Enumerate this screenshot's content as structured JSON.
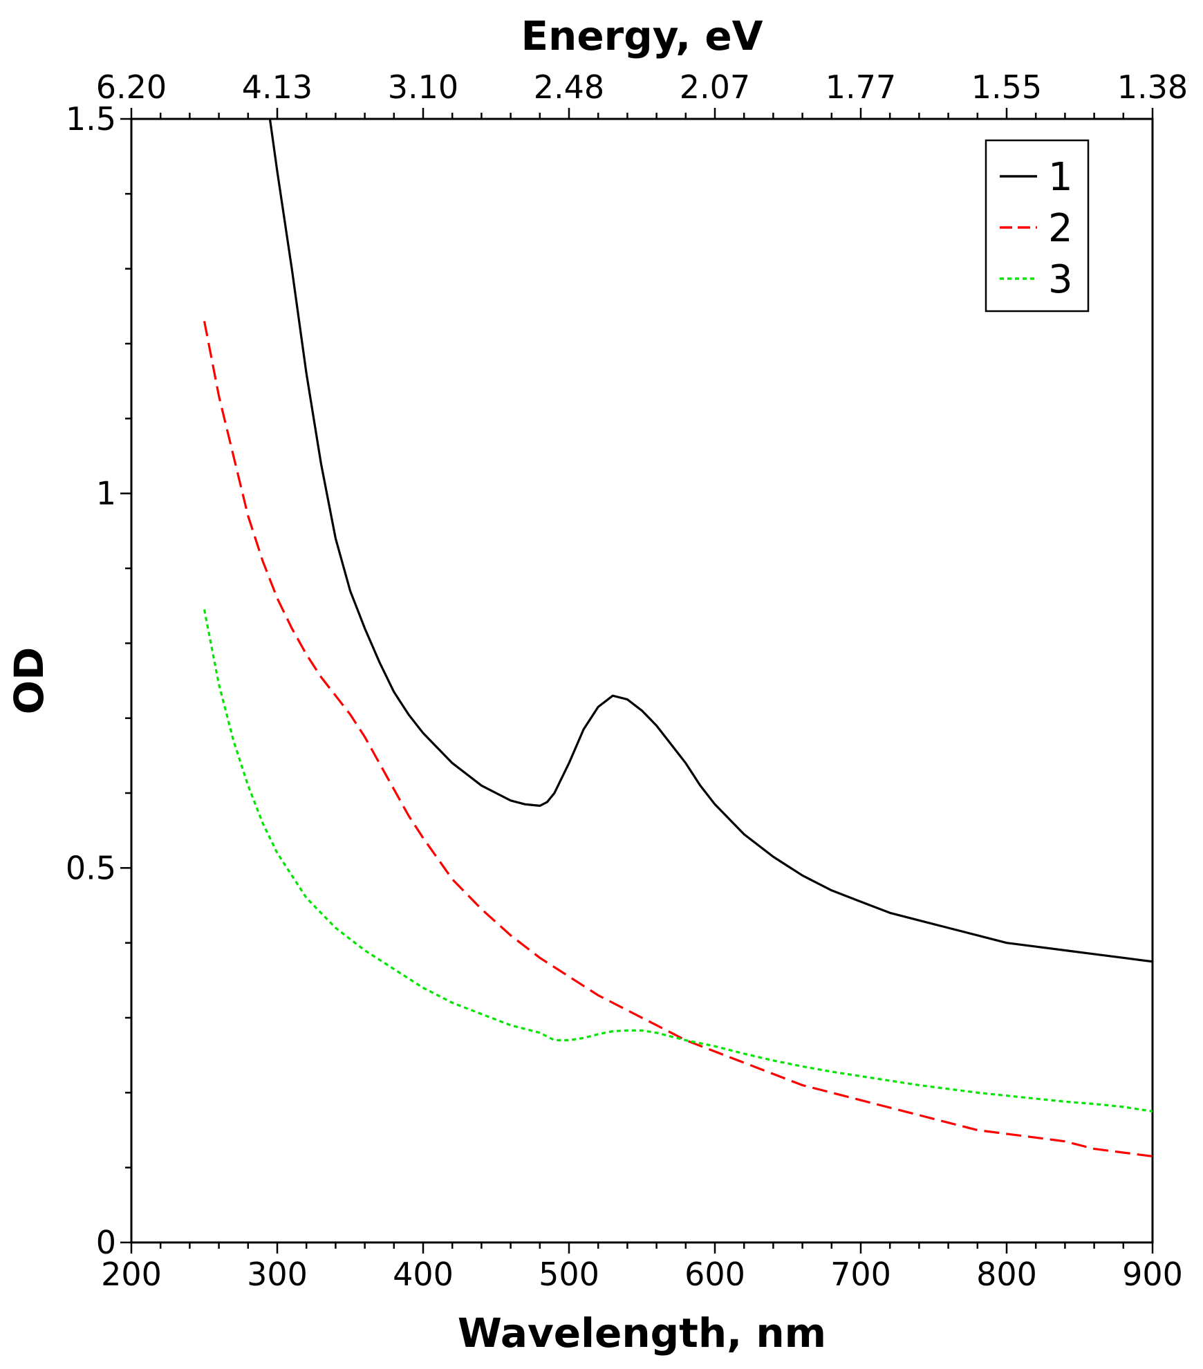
{
  "chart_data": {
    "type": "line",
    "xlabel": "Wavelength, nm",
    "ylabel": "OD",
    "top_axis_label": "Energy, eV",
    "xlim": [
      200,
      900
    ],
    "ylim": [
      0,
      1.5
    ],
    "x_ticks": [
      "200",
      "300",
      "400",
      "500",
      "600",
      "700",
      "800",
      "900"
    ],
    "y_ticks": [
      "0",
      "0.5",
      "1",
      "1.5"
    ],
    "top_ticks": [
      {
        "at": 200,
        "label": "6.20"
      },
      {
        "at": 300,
        "label": "4.13"
      },
      {
        "at": 400,
        "label": "3.10"
      },
      {
        "at": 500,
        "label": "2.48"
      },
      {
        "at": 600,
        "label": "2.07"
      },
      {
        "at": 700,
        "label": "1.77"
      },
      {
        "at": 800,
        "label": "1.55"
      },
      {
        "at": 900,
        "label": "1.38"
      }
    ],
    "grid": false,
    "legend_position": "top-right",
    "series": [
      {
        "name": "1",
        "color": "#000000",
        "dash": "solid",
        "x": [
          295,
          300,
          310,
          320,
          330,
          340,
          350,
          360,
          370,
          380,
          390,
          400,
          410,
          420,
          430,
          440,
          450,
          460,
          470,
          480,
          485,
          490,
          500,
          510,
          520,
          530,
          540,
          550,
          560,
          570,
          580,
          590,
          600,
          620,
          640,
          660,
          680,
          700,
          720,
          740,
          760,
          780,
          800,
          820,
          840,
          860,
          880,
          900
        ],
        "y": [
          1.5,
          1.43,
          1.3,
          1.16,
          1.04,
          0.94,
          0.87,
          0.82,
          0.775,
          0.735,
          0.705,
          0.68,
          0.66,
          0.64,
          0.625,
          0.61,
          0.6,
          0.59,
          0.585,
          0.583,
          0.588,
          0.6,
          0.64,
          0.685,
          0.715,
          0.73,
          0.725,
          0.71,
          0.69,
          0.665,
          0.64,
          0.61,
          0.585,
          0.545,
          0.515,
          0.49,
          0.47,
          0.455,
          0.44,
          0.43,
          0.42,
          0.41,
          0.4,
          0.395,
          0.39,
          0.385,
          0.38,
          0.375
        ]
      },
      {
        "name": "2",
        "color": "#ff0000",
        "dash": "dashed",
        "x": [
          250,
          260,
          270,
          280,
          290,
          300,
          310,
          320,
          330,
          340,
          350,
          360,
          370,
          380,
          390,
          400,
          420,
          440,
          460,
          480,
          500,
          520,
          540,
          560,
          580,
          600,
          620,
          640,
          660,
          680,
          700,
          720,
          740,
          760,
          780,
          800,
          820,
          840,
          860,
          880,
          900
        ],
        "y": [
          1.23,
          1.13,
          1.05,
          0.97,
          0.91,
          0.86,
          0.82,
          0.785,
          0.755,
          0.73,
          0.705,
          0.675,
          0.64,
          0.605,
          0.57,
          0.54,
          0.485,
          0.445,
          0.41,
          0.38,
          0.355,
          0.33,
          0.31,
          0.29,
          0.27,
          0.255,
          0.24,
          0.225,
          0.21,
          0.2,
          0.19,
          0.18,
          0.17,
          0.16,
          0.15,
          0.145,
          0.14,
          0.135,
          0.125,
          0.12,
          0.115
        ]
      },
      {
        "name": "3",
        "color": "#00e600",
        "dash": "dotted",
        "x": [
          250,
          260,
          270,
          280,
          290,
          300,
          320,
          340,
          360,
          380,
          400,
          420,
          440,
          460,
          480,
          490,
          500,
          510,
          520,
          530,
          540,
          550,
          560,
          580,
          600,
          620,
          640,
          660,
          680,
          700,
          720,
          740,
          760,
          780,
          800,
          820,
          840,
          860,
          880,
          900
        ],
        "y": [
          0.845,
          0.745,
          0.67,
          0.61,
          0.56,
          0.52,
          0.46,
          0.42,
          0.39,
          0.365,
          0.34,
          0.32,
          0.305,
          0.29,
          0.28,
          0.27,
          0.27,
          0.273,
          0.278,
          0.282,
          0.283,
          0.283,
          0.28,
          0.27,
          0.262,
          0.252,
          0.243,
          0.235,
          0.228,
          0.222,
          0.216,
          0.21,
          0.205,
          0.2,
          0.196,
          0.192,
          0.188,
          0.185,
          0.181,
          0.175
        ]
      }
    ]
  }
}
